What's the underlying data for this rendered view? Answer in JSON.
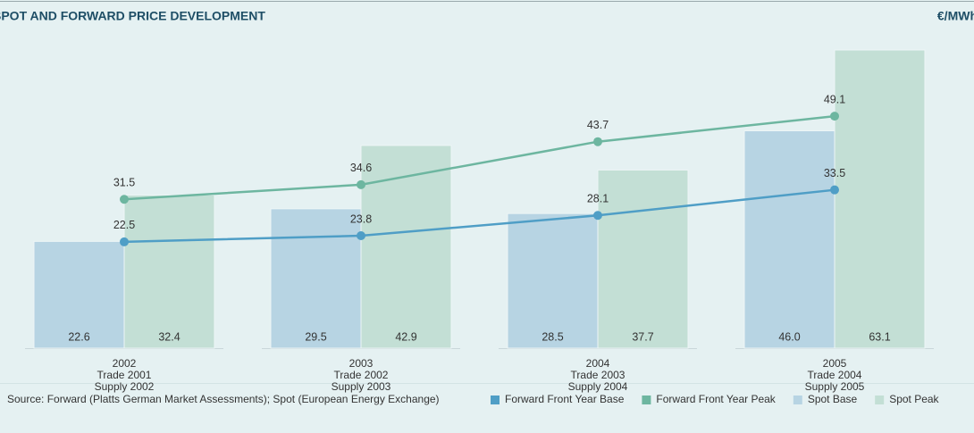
{
  "chart_data": {
    "type": "bar",
    "title": "SPOT AND FORWARD PRICE DEVELOPMENT",
    "unit": "€/MWh",
    "source": "Source: Forward (Platts German Market Assessments); Spot (European Energy Exchange)",
    "categories": [
      [
        "2002",
        "Trade 2001",
        "Supply 2002"
      ],
      [
        "2003",
        "Trade 2002",
        "Supply 2003"
      ],
      [
        "2004",
        "Trade 2003",
        "Supply 2004"
      ],
      [
        "2005",
        "Trade 2004",
        "Supply 2005"
      ]
    ],
    "series": [
      {
        "name": "Forward Front Year Base",
        "type": "line",
        "color": "#4f9ec6",
        "values": [
          22.5,
          23.8,
          28.1,
          33.5
        ]
      },
      {
        "name": "Forward Front Year Peak",
        "type": "line",
        "color": "#6db6a0",
        "values": [
          31.5,
          34.6,
          43.7,
          49.1
        ]
      },
      {
        "name": "Spot Base",
        "type": "bar",
        "color": "#b7d4e3",
        "values": [
          22.6,
          29.5,
          28.5,
          46.0
        ],
        "value_labels": [
          "22.6",
          "29.5",
          "28.5",
          "46.0"
        ]
      },
      {
        "name": "Spot Peak",
        "type": "bar",
        "color": "#c3dfd5",
        "values": [
          32.4,
          42.9,
          37.7,
          63.1
        ]
      }
    ]
  }
}
